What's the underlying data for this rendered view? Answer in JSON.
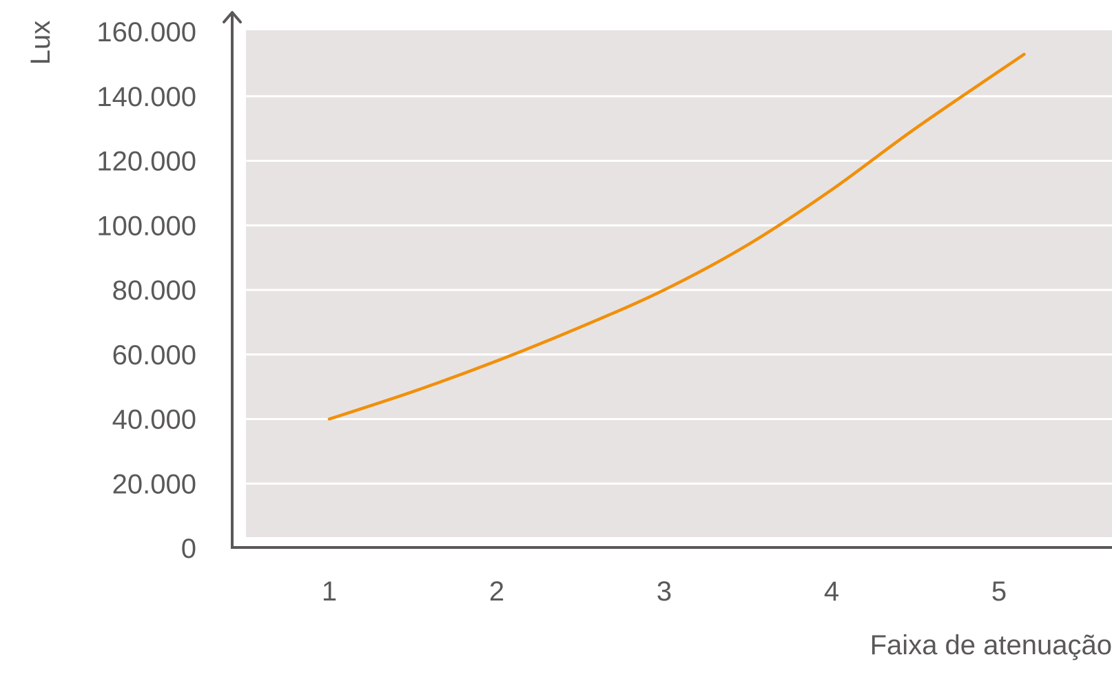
{
  "chart_data": {
    "type": "line",
    "title": "",
    "xlabel": "Faixa de atenuação",
    "ylabel": "Lux",
    "x": [
      1,
      1.5,
      2,
      2.5,
      3,
      3.5,
      4,
      4.5,
      5.15
    ],
    "series": [
      {
        "values": [
          40000,
          48500,
          58000,
          68500,
          80000,
          94000,
          111000,
          130000,
          153000
        ],
        "color": "#f0900a"
      }
    ],
    "x_ticks": [
      "1",
      "2",
      "3",
      "4",
      "5"
    ],
    "x_tick_values": [
      1,
      2,
      3,
      4,
      5
    ],
    "y_ticks": [
      "0",
      "20.000",
      "40.000",
      "60.000",
      "80.000",
      "100.000",
      "120.000",
      "140.000",
      "160.000"
    ],
    "y_tick_values": [
      0,
      20000,
      40000,
      60000,
      80000,
      100000,
      120000,
      140000,
      160000
    ],
    "ylim": [
      0,
      160000
    ],
    "grid": true,
    "legend": "none",
    "colors": {
      "plot_background": "#e8e3e3",
      "gridline": "#ffffff",
      "axis": "#5a5858",
      "text": "#5a5858"
    }
  }
}
